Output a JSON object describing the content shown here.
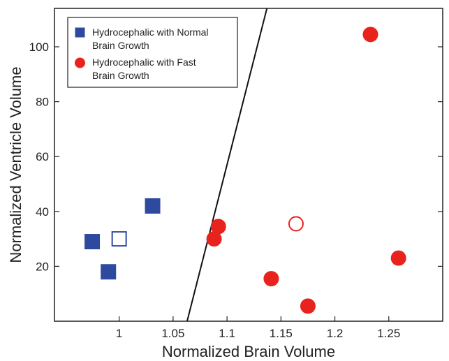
{
  "chart_data": {
    "type": "scatter",
    "xlabel": "Normalized Brain Volume",
    "ylabel": "Normalized Ventricle Volume",
    "xlim": [
      0.94,
      1.3
    ],
    "ylim": [
      0,
      114
    ],
    "x_ticks": [
      1,
      1.05,
      1.1,
      1.15,
      1.2,
      1.25
    ],
    "x_tick_labels": [
      "1",
      "1.05",
      "1.1",
      "1.15",
      "1.2",
      "1.25"
    ],
    "y_ticks": [
      20,
      40,
      60,
      80,
      100
    ],
    "y_tick_labels": [
      "20",
      "40",
      "60",
      "80",
      "100"
    ],
    "grid": false,
    "legend_position": "top-left",
    "series": [
      {
        "name": "Hydrocephalic with Normal Brain Growth",
        "name_lines": [
          "Hydrocephalic with Normal",
          "Brain Growth"
        ],
        "marker": "square",
        "color": "#2e4a9e",
        "points": [
          {
            "x": 0.975,
            "y": 29,
            "filled": true
          },
          {
            "x": 0.99,
            "y": 18,
            "filled": true
          },
          {
            "x": 1.031,
            "y": 42,
            "filled": true
          },
          {
            "x": 1.0,
            "y": 30,
            "filled": false
          }
        ]
      },
      {
        "name": "Hydrocephalic with Fast Brain Growth",
        "name_lines": [
          "Hydrocephalic with Fast",
          "Brain Growth"
        ],
        "marker": "circle",
        "color": "#e8231e",
        "points": [
          {
            "x": 1.088,
            "y": 30,
            "filled": true
          },
          {
            "x": 1.092,
            "y": 34.5,
            "filled": true
          },
          {
            "x": 1.141,
            "y": 15.5,
            "filled": true
          },
          {
            "x": 1.175,
            "y": 5.5,
            "filled": true
          },
          {
            "x": 1.233,
            "y": 104.5,
            "filled": true
          },
          {
            "x": 1.259,
            "y": 23,
            "filled": true
          },
          {
            "x": 1.164,
            "y": 35.5,
            "filled": false
          }
        ]
      }
    ],
    "boundary_line": {
      "x1": 1.063,
      "y1": 0,
      "x2": 1.137,
      "y2": 114,
      "color": "#111111"
    }
  }
}
